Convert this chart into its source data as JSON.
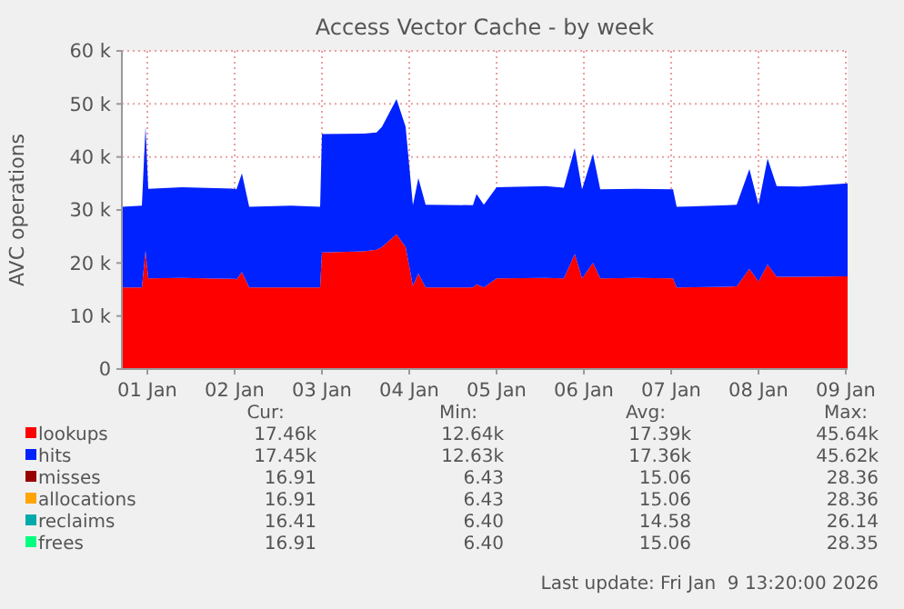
{
  "chart_data": {
    "type": "area",
    "stacked": true,
    "title": "Access Vector Cache - by week",
    "ylabel": "AVC operations",
    "x": [
      "2025-12-31T17:00",
      "2025-12-31T22:30",
      "2025-12-31T23:30",
      "2026-01-01T00:15",
      "2026-01-01T09:30",
      "2026-01-02T00:00",
      "2026-01-02T00:30",
      "2026-01-02T02:00",
      "2026-01-02T04:00",
      "2026-01-02T15:30",
      "2026-01-02T23:30",
      "2026-01-03T00:00",
      "2026-01-03T11:30",
      "2026-01-03T15:00",
      "2026-01-03T16:30",
      "2026-01-03T20:30",
      "2026-01-03T23:00",
      "2026-01-04T01:00",
      "2026-01-04T02:30",
      "2026-01-04T04:30",
      "2026-01-04T17:30",
      "2026-01-04T18:30",
      "2026-01-04T20:30",
      "2026-01-05T00:00",
      "2026-01-05T13:30",
      "2026-01-05T18:30",
      "2026-01-05T21:30",
      "2026-01-05T23:30",
      "2026-01-06T02:30",
      "2026-01-06T04:30",
      "2026-01-06T14:30",
      "2026-01-07T00:30",
      "2026-01-07T01:30",
      "2026-01-07T15:30",
      "2026-01-07T18:00",
      "2026-01-07T21:30",
      "2026-01-08T00:00",
      "2026-01-08T02:30",
      "2026-01-08T05:00",
      "2026-01-08T11:30",
      "2026-01-09T00:30"
    ],
    "series": [
      {
        "name": "lookups",
        "color": "#ff0000",
        "values": [
          15400,
          15400,
          22300,
          17100,
          17200,
          17000,
          16900,
          18300,
          15400,
          15400,
          15400,
          22000,
          22200,
          22500,
          23000,
          25400,
          23000,
          15700,
          18000,
          15400,
          15400,
          16000,
          15400,
          17100,
          17200,
          17100,
          21700,
          17100,
          20000,
          17100,
          17200,
          17100,
          15400,
          15500,
          15600,
          18900,
          16500,
          19700,
          17400,
          17400,
          17500
        ]
      },
      {
        "name": "hits",
        "color": "#0022ff",
        "values": [
          15200,
          15400,
          23400,
          16900,
          17100,
          17000,
          17000,
          18600,
          15200,
          15400,
          15200,
          22300,
          22200,
          22100,
          22700,
          25500,
          22700,
          15200,
          18000,
          15600,
          15500,
          17000,
          15600,
          17200,
          17300,
          17100,
          20000,
          16800,
          20600,
          16800,
          16800,
          16800,
          15200,
          15400,
          15400,
          18800,
          14500,
          20000,
          17100,
          17000,
          17500
        ]
      },
      {
        "name": "misses",
        "color": "#990000",
        "values": [
          null,
          null,
          null,
          null,
          null,
          null,
          null,
          null,
          null,
          null,
          null,
          null,
          null,
          null,
          null,
          null,
          null,
          null,
          null,
          null,
          null,
          null,
          null,
          null,
          null,
          null,
          null,
          null,
          null,
          null,
          null,
          null,
          null,
          null,
          null,
          null,
          null,
          null,
          null,
          null,
          null
        ]
      },
      {
        "name": "allocations",
        "color": "#ffa500",
        "values": [
          null,
          null,
          null,
          null,
          null,
          null,
          null,
          null,
          null,
          null,
          null,
          null,
          null,
          null,
          null,
          null,
          null,
          null,
          null,
          null,
          null,
          null,
          null,
          null,
          null,
          null,
          null,
          null,
          null,
          null,
          null,
          null,
          null,
          null,
          null,
          null,
          null,
          null,
          null,
          null,
          null
        ]
      },
      {
        "name": "reclaims",
        "color": "#00aaaa",
        "values": [
          null,
          null,
          null,
          null,
          null,
          null,
          null,
          null,
          null,
          null,
          null,
          null,
          null,
          null,
          null,
          null,
          null,
          null,
          null,
          null,
          null,
          null,
          null,
          null,
          null,
          null,
          null,
          null,
          null,
          null,
          null,
          null,
          null,
          null,
          null,
          null,
          null,
          null,
          null,
          null,
          null
        ]
      },
      {
        "name": "frees",
        "color": "#00ff80",
        "values": [
          null,
          null,
          null,
          null,
          null,
          null,
          null,
          null,
          null,
          null,
          null,
          null,
          null,
          null,
          null,
          null,
          null,
          null,
          null,
          null,
          null,
          null,
          null,
          null,
          null,
          null,
          null,
          null,
          null,
          null,
          null,
          null,
          null,
          null,
          null,
          null,
          null,
          null,
          null,
          null,
          null
        ]
      }
    ],
    "xlim": [
      "2025-12-31T17:00",
      "2026-01-09T00:30"
    ],
    "xticks": [
      {
        "value": "2026-01-01",
        "label": "01 Jan"
      },
      {
        "value": "2026-01-02",
        "label": "02 Jan"
      },
      {
        "value": "2026-01-03",
        "label": "03 Jan"
      },
      {
        "value": "2026-01-04",
        "label": "04 Jan"
      },
      {
        "value": "2026-01-05",
        "label": "05 Jan"
      },
      {
        "value": "2026-01-06",
        "label": "06 Jan"
      },
      {
        "value": "2026-01-07",
        "label": "07 Jan"
      },
      {
        "value": "2026-01-08",
        "label": "08 Jan"
      },
      {
        "value": "2026-01-09",
        "label": "09 Jan"
      }
    ],
    "ylim": [
      0,
      60000
    ],
    "yticks": [
      0,
      {
        "value": 10000,
        "label": "10 k"
      },
      {
        "value": 20000,
        "label": "20 k"
      },
      {
        "value": 30000,
        "label": "30 k"
      },
      {
        "value": 40000,
        "label": "40 k"
      },
      {
        "value": 50000,
        "label": "50 k"
      },
      {
        "value": 60000,
        "label": "60 k"
      }
    ],
    "grid": true,
    "legend": "bottom",
    "annotations": [
      "Cur:",
      "Min:",
      "Avg:",
      "Max:",
      "17.46k",
      "12.64k",
      "17.39k",
      "45.64k",
      "17.45k",
      "12.63k",
      "17.36k",
      "45.62k",
      "16.91",
      "6.43",
      "15.06",
      "28.36",
      "16.91",
      "6.43",
      "15.06",
      "28.36",
      "16.41",
      "6.40",
      "14.58",
      "26.14",
      "16.91",
      "6.40",
      "15.06",
      "28.35",
      "Last update: Fri Jan  9 13:20:00 2026"
    ]
  }
}
